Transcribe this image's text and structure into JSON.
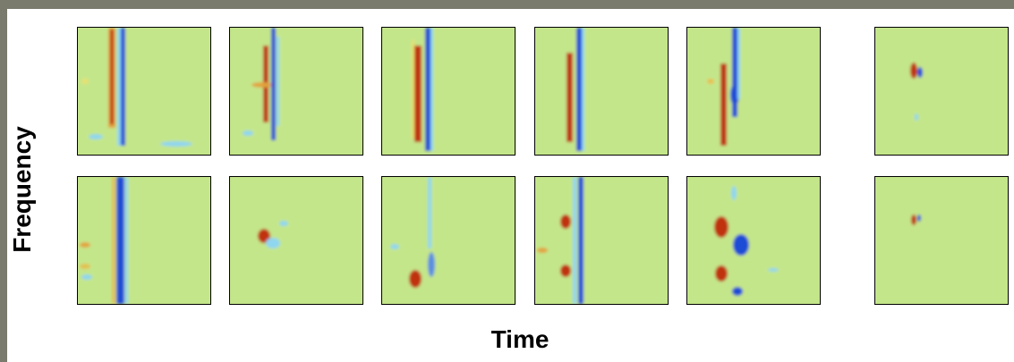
{
  "axis_labels": {
    "y": "Frequency",
    "x": "Time"
  },
  "colors": {
    "background": "#c4e68a",
    "positive": "#c0300a",
    "negative": "#1f4bd6",
    "light_positive": "#f0d060",
    "light_negative": "#8fd6f0"
  }
}
